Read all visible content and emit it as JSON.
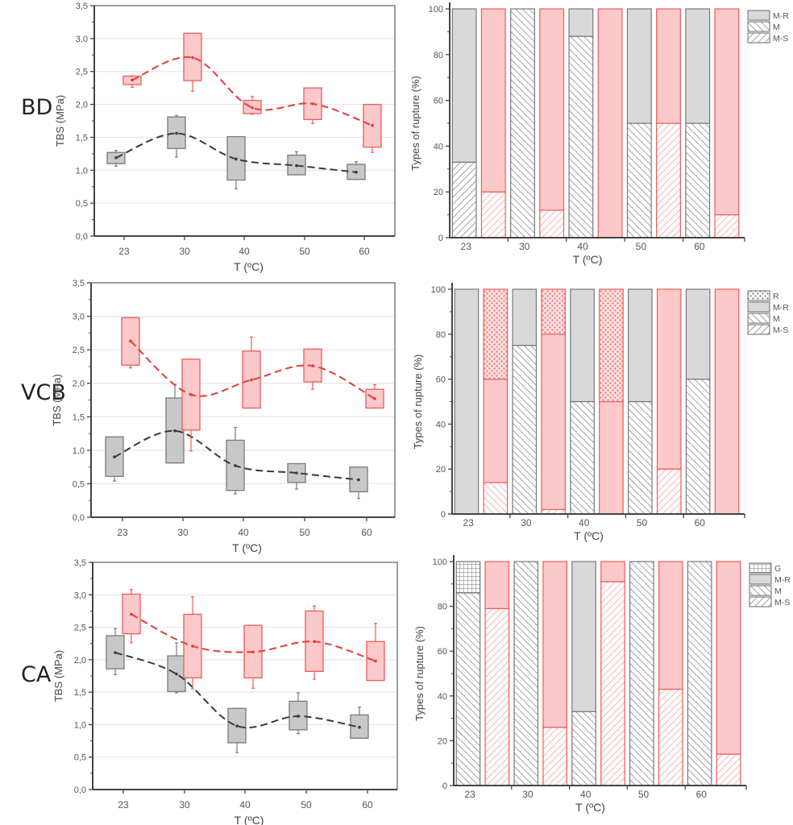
{
  "rows": [
    {
      "label": "BD"
    },
    {
      "label": "VCB"
    },
    {
      "label": "CA"
    }
  ],
  "colors": {
    "gray_series": "#9e9e9e",
    "gray_fill": "#c8c8c8",
    "red_series": "#ef5a5a",
    "red_fill": "#fbc9c9",
    "gray_line": "#3a3a3a",
    "red_line": "#e23b3b",
    "grid": "#e6e6e6",
    "axis": "#555555"
  },
  "chart_data": [
    {
      "id": "bd-tbs",
      "type": "box",
      "row": "BD",
      "title": "",
      "xlabel": "T (ºC)",
      "ylabel": "TBS (MPa)",
      "ylim": [
        0,
        3.5
      ],
      "yticks": [
        "0,0",
        "0,5",
        "1,0",
        "1,5",
        "2,0",
        "2,5",
        "3,0",
        "3,5"
      ],
      "categories": [
        "23",
        "30",
        "40",
        "50",
        "60"
      ],
      "grid": true,
      "series": [
        {
          "name": "gray",
          "boxes": [
            {
              "min": 1.06,
              "q1": 1.1,
              "median": 1.19,
              "q3": 1.27,
              "max": 1.3
            },
            {
              "min": 1.2,
              "q1": 1.33,
              "median": 1.56,
              "q3": 1.81,
              "max": 1.83
            },
            {
              "min": 0.72,
              "q1": 0.85,
              "median": 1.17,
              "q3": 1.51,
              "max": 1.51
            },
            {
              "min": 0.93,
              "q1": 0.93,
              "median": 1.07,
              "q3": 1.23,
              "max": 1.28
            },
            {
              "min": 0.86,
              "q1": 0.86,
              "median": 0.97,
              "q3": 1.09,
              "max": 1.13
            }
          ],
          "trend": [
            1.19,
            1.56,
            1.17,
            1.07,
            0.97
          ]
        },
        {
          "name": "red",
          "boxes": [
            {
              "min": 2.26,
              "q1": 2.3,
              "median": 2.37,
              "q3": 2.43,
              "max": 2.43
            },
            {
              "min": 2.2,
              "q1": 2.36,
              "median": 2.71,
              "q3": 3.08,
              "max": 3.08
            },
            {
              "min": 1.85,
              "q1": 1.86,
              "median": 1.95,
              "q3": 2.06,
              "max": 2.12
            },
            {
              "min": 1.71,
              "q1": 1.77,
              "median": 2.01,
              "q3": 2.25,
              "max": 2.25
            },
            {
              "min": 1.27,
              "q1": 1.35,
              "median": 1.68,
              "q3": 2.0,
              "max": 2.0
            }
          ],
          "trend": [
            2.37,
            2.71,
            1.95,
            2.01,
            1.68
          ]
        }
      ]
    },
    {
      "id": "bd-rupture",
      "type": "bar",
      "stacked": true,
      "row": "BD",
      "xlabel": "T (ºC)",
      "ylabel": "Types of rupture (%)",
      "ylim": [
        0,
        100
      ],
      "yticks": [
        "0",
        "20",
        "40",
        "60",
        "80",
        "100"
      ],
      "categories": [
        "23",
        "30",
        "40",
        "50",
        "60"
      ],
      "legend": [
        "M-R",
        "M",
        "M-S"
      ],
      "legend_position": "top-right",
      "bars": [
        {
          "cat": "23",
          "series": "gray",
          "segments": [
            {
              "type": "M-S",
              "value": 33
            },
            {
              "type": "M-R",
              "value": 67
            }
          ]
        },
        {
          "cat": "23",
          "series": "red",
          "segments": [
            {
              "type": "M-S",
              "value": 20
            },
            {
              "type": "M-R",
              "value": 80
            }
          ]
        },
        {
          "cat": "30",
          "series": "gray",
          "segments": [
            {
              "type": "M",
              "value": 100
            }
          ]
        },
        {
          "cat": "30",
          "series": "red",
          "segments": [
            {
              "type": "M-S",
              "value": 12
            },
            {
              "type": "M-R",
              "value": 88
            }
          ]
        },
        {
          "cat": "40",
          "series": "gray",
          "segments": [
            {
              "type": "M",
              "value": 88
            },
            {
              "type": "M-R",
              "value": 12
            }
          ]
        },
        {
          "cat": "40",
          "series": "red",
          "segments": [
            {
              "type": "M-R",
              "value": 100
            }
          ]
        },
        {
          "cat": "50",
          "series": "gray",
          "segments": [
            {
              "type": "M",
              "value": 50
            },
            {
              "type": "M-R",
              "value": 50
            }
          ]
        },
        {
          "cat": "50",
          "series": "red",
          "segments": [
            {
              "type": "M-S",
              "value": 50
            },
            {
              "type": "M-R",
              "value": 50
            }
          ]
        },
        {
          "cat": "60",
          "series": "gray",
          "segments": [
            {
              "type": "M",
              "value": 50
            },
            {
              "type": "M-R",
              "value": 50
            }
          ]
        },
        {
          "cat": "60",
          "series": "red",
          "segments": [
            {
              "type": "M-S",
              "value": 10
            },
            {
              "type": "M-R",
              "value": 90
            }
          ]
        }
      ]
    },
    {
      "id": "vcb-tbs",
      "type": "box",
      "row": "VCB",
      "xlabel": "T (ºC)",
      "ylabel": "TBS (MPa)",
      "ylim": [
        0,
        3.5
      ],
      "yticks": [
        "0,0",
        "0,5",
        "1,0",
        "1,5",
        "2,0",
        "2,5",
        "3,0",
        "3,5"
      ],
      "categories": [
        "23",
        "30",
        "40",
        "50",
        "60"
      ],
      "grid": true,
      "series": [
        {
          "name": "gray",
          "boxes": [
            {
              "min": 0.54,
              "q1": 0.61,
              "median": 0.9,
              "q3": 1.2,
              "max": 1.2
            },
            {
              "min": 0.81,
              "q1": 0.81,
              "median": 1.29,
              "q3": 1.78,
              "max": 1.98
            },
            {
              "min": 0.35,
              "q1": 0.4,
              "median": 0.77,
              "q3": 1.15,
              "max": 1.34
            },
            {
              "min": 0.42,
              "q1": 0.52,
              "median": 0.66,
              "q3": 0.8,
              "max": 0.8
            },
            {
              "min": 0.28,
              "q1": 0.38,
              "median": 0.56,
              "q3": 0.75,
              "max": 0.75
            }
          ],
          "trend": [
            0.9,
            1.29,
            0.77,
            0.66,
            0.56
          ]
        },
        {
          "name": "red",
          "boxes": [
            {
              "min": 2.23,
              "q1": 2.27,
              "median": 2.63,
              "q3": 2.98,
              "max": 2.98
            },
            {
              "min": 0.99,
              "q1": 1.3,
              "median": 1.83,
              "q3": 2.36,
              "max": 2.36
            },
            {
              "min": 1.63,
              "q1": 1.63,
              "median": 2.05,
              "q3": 2.48,
              "max": 2.69
            },
            {
              "min": 1.91,
              "q1": 2.02,
              "median": 2.26,
              "q3": 2.51,
              "max": 2.51
            },
            {
              "min": 1.63,
              "q1": 1.63,
              "median": 1.77,
              "q3": 1.91,
              "max": 1.98
            }
          ],
          "trend": [
            2.63,
            1.83,
            2.05,
            2.26,
            1.77
          ]
        }
      ]
    },
    {
      "id": "vcb-rupture",
      "type": "bar",
      "stacked": true,
      "row": "VCB",
      "xlabel": "T (ºC)",
      "ylabel": "Types of rupture (%)",
      "ylim": [
        0,
        100
      ],
      "yticks": [
        "0",
        "20",
        "40",
        "60",
        "80",
        "100"
      ],
      "categories": [
        "23",
        "30",
        "40",
        "50",
        "60"
      ],
      "legend": [
        "R",
        "M-R",
        "M",
        "M-S"
      ],
      "legend_position": "top-right",
      "bars": [
        {
          "cat": "23",
          "series": "gray",
          "segments": [
            {
              "type": "M-R",
              "value": 100
            }
          ]
        },
        {
          "cat": "23",
          "series": "red",
          "segments": [
            {
              "type": "M",
              "value": 14
            },
            {
              "type": "M-R",
              "value": 46
            },
            {
              "type": "R",
              "value": 40
            }
          ]
        },
        {
          "cat": "30",
          "series": "gray",
          "segments": [
            {
              "type": "M",
              "value": 75
            },
            {
              "type": "M-R",
              "value": 25
            }
          ]
        },
        {
          "cat": "30",
          "series": "red",
          "segments": [
            {
              "type": "M-S",
              "value": 2
            },
            {
              "type": "M-R",
              "value": 78
            },
            {
              "type": "R",
              "value": 20
            }
          ]
        },
        {
          "cat": "40",
          "series": "gray",
          "segments": [
            {
              "type": "M",
              "value": 50
            },
            {
              "type": "M-R",
              "value": 50
            }
          ]
        },
        {
          "cat": "40",
          "series": "red",
          "segments": [
            {
              "type": "M-R",
              "value": 50
            },
            {
              "type": "R",
              "value": 50
            }
          ]
        },
        {
          "cat": "50",
          "series": "gray",
          "segments": [
            {
              "type": "M",
              "value": 50
            },
            {
              "type": "M-R",
              "value": 50
            }
          ]
        },
        {
          "cat": "50",
          "series": "red",
          "segments": [
            {
              "type": "M-S",
              "value": 20
            },
            {
              "type": "M-R",
              "value": 80
            }
          ]
        },
        {
          "cat": "60",
          "series": "gray",
          "segments": [
            {
              "type": "M",
              "value": 60
            },
            {
              "type": "M-R",
              "value": 40
            }
          ]
        },
        {
          "cat": "60",
          "series": "red",
          "segments": [
            {
              "type": "M-R",
              "value": 100
            }
          ]
        }
      ]
    },
    {
      "id": "ca-tbs",
      "type": "box",
      "row": "CA",
      "xlabel": "T (ºC)",
      "ylabel": "TBS (MPa)",
      "ylim": [
        0,
        3.5
      ],
      "yticks": [
        "0,0",
        "0,5",
        "1,0",
        "1,5",
        "2,0",
        "2,5",
        "3,0",
        "3,5"
      ],
      "categories": [
        "23",
        "30",
        "40",
        "50",
        "60"
      ],
      "grid": true,
      "series": [
        {
          "name": "gray",
          "boxes": [
            {
              "min": 1.77,
              "q1": 1.86,
              "median": 2.11,
              "q3": 2.37,
              "max": 2.48
            },
            {
              "min": 1.49,
              "q1": 1.51,
              "median": 1.78,
              "q3": 2.06,
              "max": 2.26
            },
            {
              "min": 0.57,
              "q1": 0.72,
              "median": 0.98,
              "q3": 1.25,
              "max": 1.25
            },
            {
              "min": 0.86,
              "q1": 0.92,
              "median": 1.13,
              "q3": 1.36,
              "max": 1.49
            },
            {
              "min": 0.79,
              "q1": 0.79,
              "median": 0.96,
              "q3": 1.15,
              "max": 1.27
            }
          ],
          "trend": [
            2.11,
            1.78,
            0.98,
            1.13,
            0.96
          ]
        },
        {
          "name": "red",
          "boxes": [
            {
              "min": 2.26,
              "q1": 2.4,
              "median": 2.7,
              "q3": 3.01,
              "max": 3.08
            },
            {
              "min": 1.55,
              "q1": 1.72,
              "median": 2.21,
              "q3": 2.7,
              "max": 2.97
            },
            {
              "min": 1.56,
              "q1": 1.72,
              "median": 2.12,
              "q3": 2.53,
              "max": 2.53
            },
            {
              "min": 1.7,
              "q1": 1.82,
              "median": 2.28,
              "q3": 2.75,
              "max": 2.83
            },
            {
              "min": 1.68,
              "q1": 1.68,
              "median": 1.98,
              "q3": 2.28,
              "max": 2.56
            }
          ],
          "trend": [
            2.7,
            2.21,
            2.12,
            2.28,
            1.98
          ]
        }
      ]
    },
    {
      "id": "ca-rupture",
      "type": "bar",
      "stacked": true,
      "row": "CA",
      "xlabel": "T (ºC)",
      "ylabel": "Types of rupture (%)",
      "ylim": [
        0,
        100
      ],
      "yticks": [
        "0",
        "20",
        "40",
        "60",
        "80",
        "100"
      ],
      "categories": [
        "23",
        "30",
        "40",
        "50",
        "60"
      ],
      "legend": [
        "G",
        "M-R",
        "M",
        "M-S"
      ],
      "legend_position": "top-right",
      "bars": [
        {
          "cat": "23",
          "series": "gray",
          "segments": [
            {
              "type": "M",
              "value": 86
            },
            {
              "type": "G",
              "value": 14
            }
          ]
        },
        {
          "cat": "23",
          "series": "red",
          "segments": [
            {
              "type": "M-S",
              "value": 79
            },
            {
              "type": "M-R",
              "value": 21
            }
          ]
        },
        {
          "cat": "30",
          "series": "gray",
          "segments": [
            {
              "type": "M",
              "value": 100
            }
          ]
        },
        {
          "cat": "30",
          "series": "red",
          "segments": [
            {
              "type": "M-S",
              "value": 26
            },
            {
              "type": "M-R",
              "value": 74
            }
          ]
        },
        {
          "cat": "40",
          "series": "gray",
          "segments": [
            {
              "type": "M",
              "value": 33
            },
            {
              "type": "M-R",
              "value": 67
            }
          ]
        },
        {
          "cat": "40",
          "series": "red",
          "segments": [
            {
              "type": "M-S",
              "value": 91
            },
            {
              "type": "M-R",
              "value": 9
            }
          ]
        },
        {
          "cat": "50",
          "series": "gray",
          "segments": [
            {
              "type": "M",
              "value": 100
            }
          ]
        },
        {
          "cat": "50",
          "series": "red",
          "segments": [
            {
              "type": "M-S",
              "value": 43
            },
            {
              "type": "M-R",
              "value": 57
            }
          ]
        },
        {
          "cat": "60",
          "series": "gray",
          "segments": [
            {
              "type": "M",
              "value": 100
            }
          ]
        },
        {
          "cat": "60",
          "series": "red",
          "segments": [
            {
              "type": "M-S",
              "value": 14
            },
            {
              "type": "M-R",
              "value": 86
            }
          ]
        }
      ]
    }
  ]
}
